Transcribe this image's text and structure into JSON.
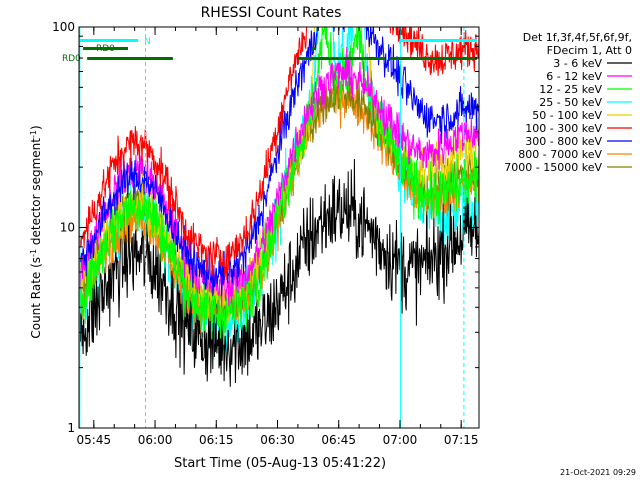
{
  "chart_data": {
    "type": "line",
    "title": "RHESSI Count Rates",
    "xlabel": "Start Time (05-Aug-13 05:41:22)",
    "ylabel_main": "Count Rate (s",
    "ylabel_sup1": "-1",
    "ylabel_mid": " detector segment",
    "ylabel_sup2": "-1",
    "ylabel_end": ")",
    "yscale": "log",
    "xlim_minutes": [
      0,
      98
    ],
    "ylim": [
      1,
      100
    ],
    "x_ticks": [
      {
        "label": "05:45",
        "minutes": 3.633
      },
      {
        "label": "06:00",
        "minutes": 18.633
      },
      {
        "label": "06:15",
        "minutes": 33.633
      },
      {
        "label": "06:30",
        "minutes": 48.633
      },
      {
        "label": "06:45",
        "minutes": 63.633
      },
      {
        "label": "07:00",
        "minutes": 78.633
      },
      {
        "label": "07:15",
        "minutes": 93.633
      }
    ],
    "y_ticks": [
      {
        "label": "1",
        "value": 1
      },
      {
        "label": "10",
        "value": 10
      },
      {
        "label": "100",
        "value": 100
      }
    ],
    "legend_header": [
      "Det 1f,3f,4f,5f,6f,9f,",
      "FDecim 1, Att 0"
    ],
    "series": [
      {
        "name": "3 - 6 keV",
        "color": "#000000",
        "base": 2.6,
        "hump1": 2.8,
        "peak": 4.6,
        "trough": 3.6,
        "spikes": 1.0,
        "noise": 0.22
      },
      {
        "name": "6 - 12 keV",
        "color": "#ff00ff",
        "base": 5.0,
        "hump1": 3.9,
        "peak": 11.5,
        "trough": 6.0,
        "spikes": 1.0,
        "noise": 0.1
      },
      {
        "name": "12 - 25 keV",
        "color": "#00ff00",
        "base": 3.6,
        "hump1": 3.6,
        "peak": 14.0,
        "trough": 4.7,
        "spikes": 2.0,
        "noise": 0.14
      },
      {
        "name": "25 - 50 keV",
        "color": "#00ffff",
        "base": 3.2,
        "hump1": 3.8,
        "peak": 16.0,
        "trough": 4.0,
        "spikes": 4.0,
        "noise": 0.16
      },
      {
        "name": "50 - 100 keV",
        "color": "#e8d000",
        "base": 4.4,
        "hump1": 3.0,
        "peak": 11.0,
        "trough": 5.6,
        "spikes": 15.0,
        "noise": 0.12
      },
      {
        "name": "100 - 300 keV",
        "color": "#ff0000",
        "base": 6.8,
        "hump1": 3.9,
        "peak": 23.0,
        "trough": 11.5,
        "spikes": 10.0,
        "noise": 0.1
      },
      {
        "name": "300 - 800 keV",
        "color": "#0000ff",
        "base": 5.6,
        "hump1": 3.2,
        "peak": 20.0,
        "trough": 7.0,
        "spikes": 1.5,
        "noise": 0.1
      },
      {
        "name": "800 - 7000 keV",
        "color": "#ff8000",
        "base": 3.7,
        "hump1": 3.1,
        "peak": 12.0,
        "trough": 4.5,
        "spikes": 1.0,
        "noise": 0.12
      },
      {
        "name": "7000 - 15000 keV",
        "color": "#808000",
        "base": 4.0,
        "hump1": 3.4,
        "peak": 11.5,
        "trough": 4.8,
        "spikes": 1.0,
        "noise": 0.1
      }
    ],
    "attenuator_bars": [
      {
        "label": "RD0",
        "row": "upper",
        "segments": [
          [
            1,
            12
          ],
          [
            57,
            58
          ]
        ]
      },
      {
        "label": "RD0",
        "row": "lower",
        "segments": [
          [
            2,
            23
          ],
          [
            53.5,
            75
          ],
          [
            76,
            97.5
          ]
        ]
      }
    ],
    "saa_bars": [
      {
        "label": "N",
        "segments": [
          [
            0.2,
            14.5
          ],
          [
            78.5,
            97.5
          ]
        ]
      }
    ],
    "vertical_lines": [
      {
        "minutes": 0.2,
        "style": "solid"
      },
      {
        "minutes": 16.3,
        "style": "dashed"
      },
      {
        "minutes": 78.8,
        "style": "solid"
      },
      {
        "minutes": 94.3,
        "style": "dashed"
      }
    ],
    "colors": {
      "axis": "#000000",
      "saa": "#00ffff",
      "attenuator": "#007000"
    }
  },
  "footer": {
    "timestamp": "21-Oct-2021 09:29"
  }
}
